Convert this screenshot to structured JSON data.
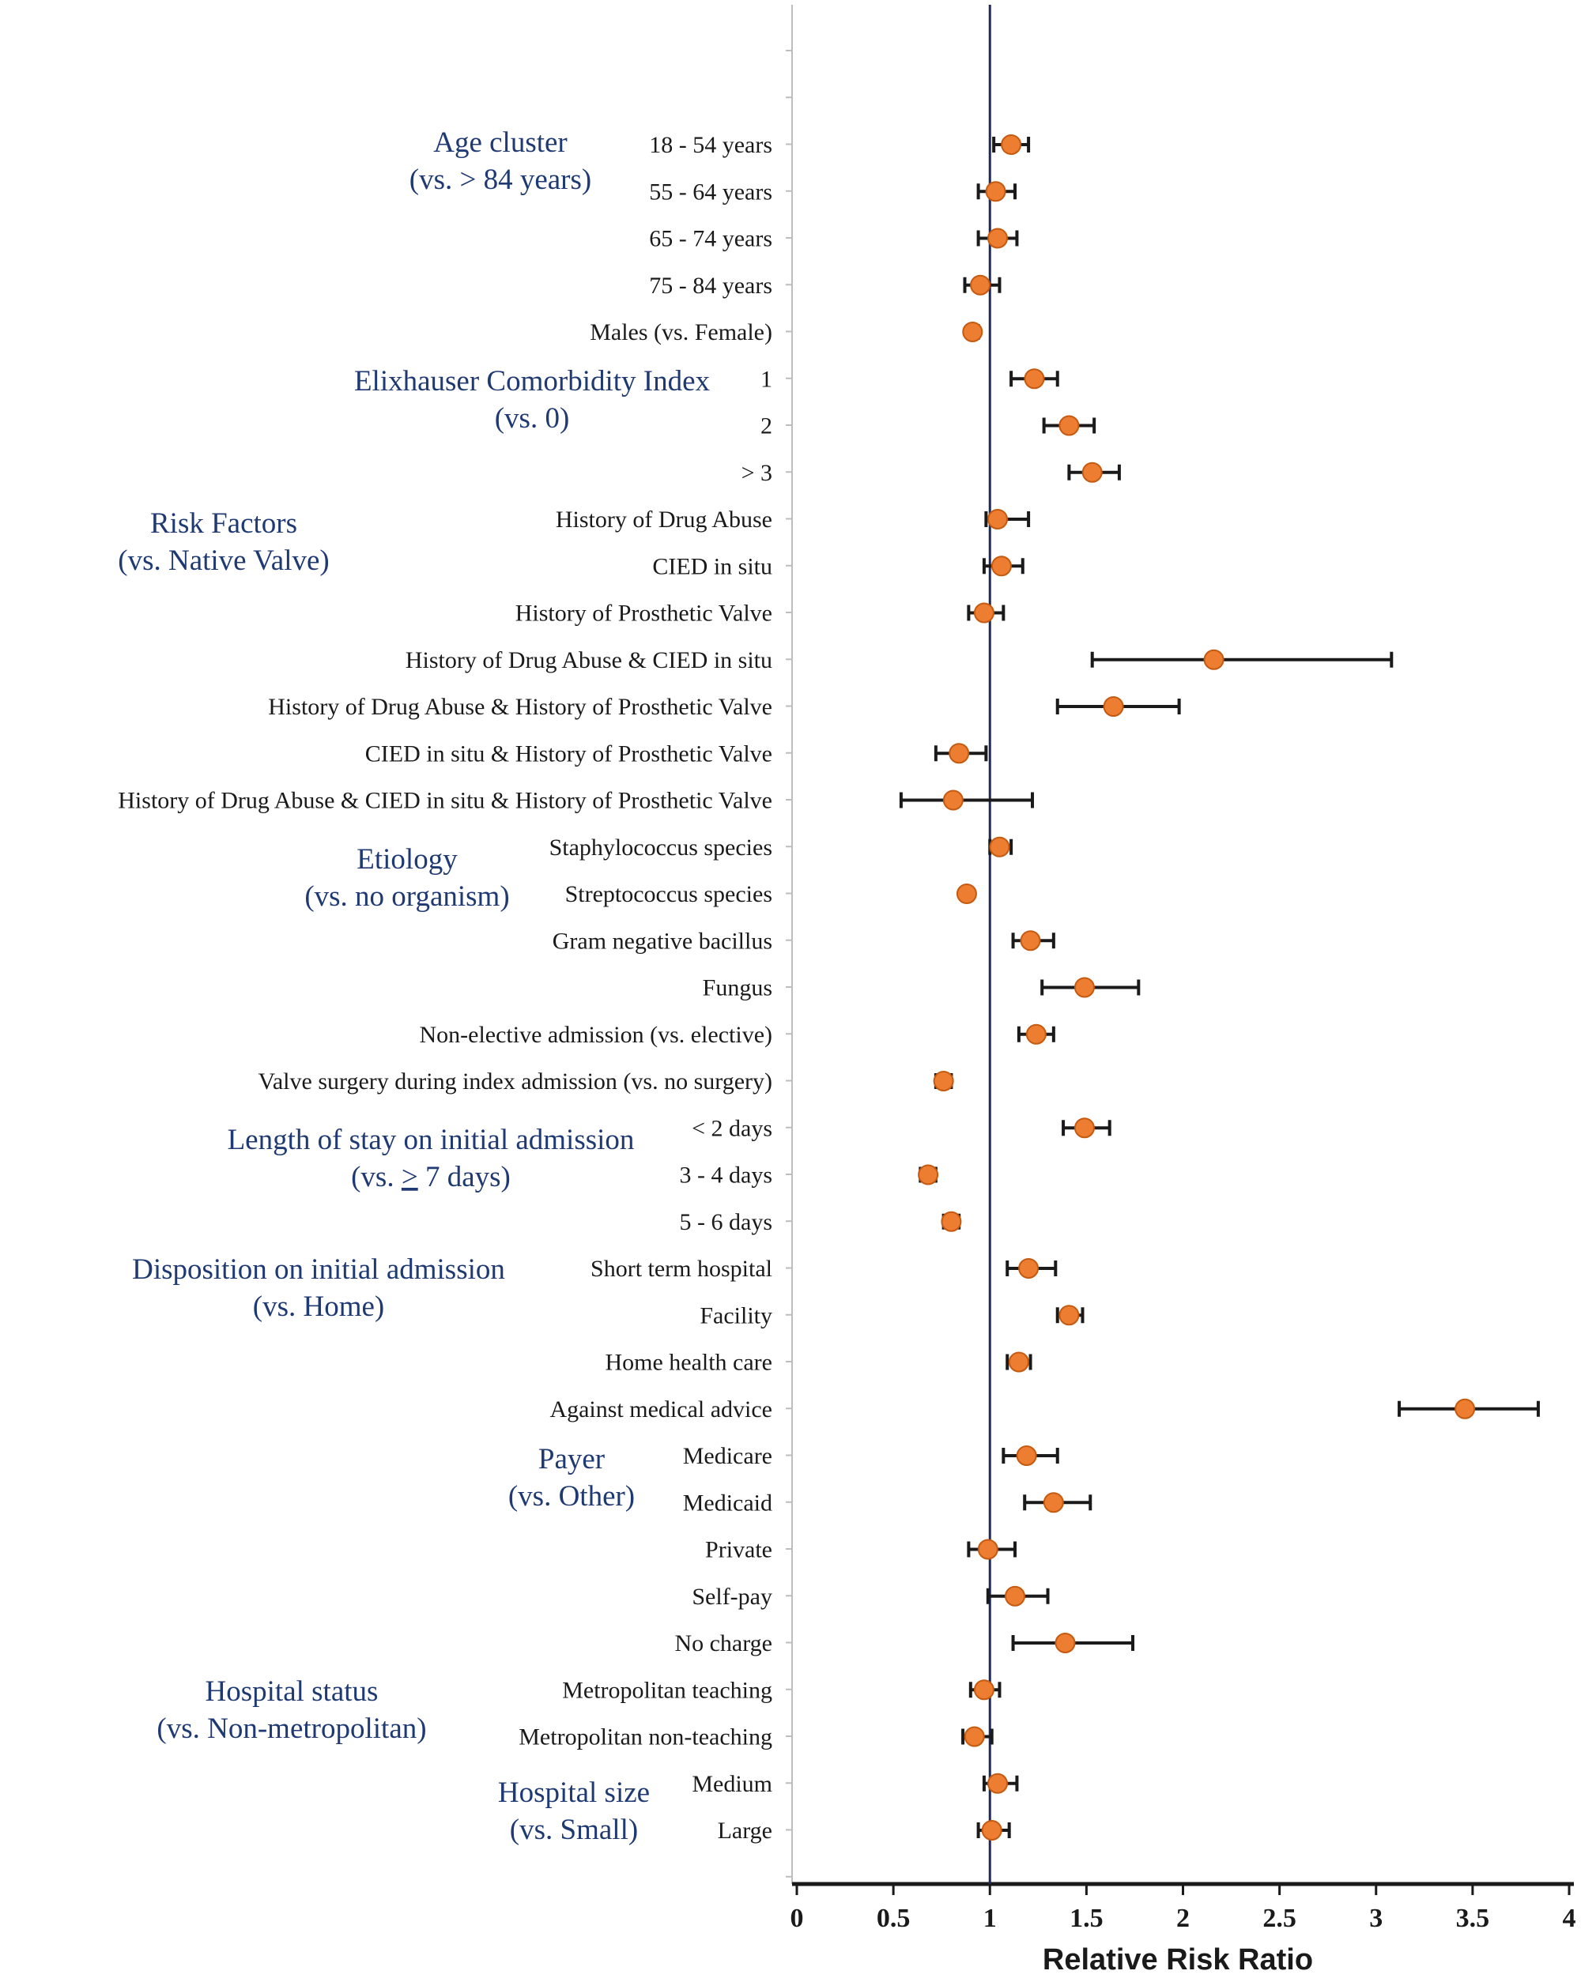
{
  "chart_data": {
    "type": "scatter",
    "subtype": "forest-plot",
    "xlabel": "Relative Risk Ratio",
    "xlim": [
      0,
      4
    ],
    "xticks": [
      "0",
      "0.5",
      "1",
      "1.5",
      "2",
      "2.5",
      "3",
      "3.5",
      "4"
    ],
    "reference_line": 1,
    "colors": {
      "point": "#ed7d31",
      "point_edge": "#c55a11",
      "reference": "#1f2a5c",
      "group_text": "#1f3a73"
    },
    "rows": [
      {
        "label": "18 - 54 years",
        "rr": 1.11,
        "lo": 1.02,
        "hi": 1.2
      },
      {
        "label": "55 - 64 years",
        "rr": 1.03,
        "lo": 0.94,
        "hi": 1.13
      },
      {
        "label": "65 - 74 years",
        "rr": 1.04,
        "lo": 0.94,
        "hi": 1.14
      },
      {
        "label": "75 - 84 years",
        "rr": 0.95,
        "lo": 0.87,
        "hi": 1.05
      },
      {
        "label": "Males (vs. Female)",
        "rr": 0.91,
        "lo": 0.89,
        "hi": 0.94
      },
      {
        "label": "1",
        "rr": 1.23,
        "lo": 1.11,
        "hi": 1.35
      },
      {
        "label": "2",
        "rr": 1.41,
        "lo": 1.28,
        "hi": 1.54
      },
      {
        "label": "> 3",
        "rr": 1.53,
        "lo": 1.41,
        "hi": 1.67
      },
      {
        "label": "History of Drug Abuse",
        "rr": 1.04,
        "lo": 0.98,
        "hi": 1.2
      },
      {
        "label": "CIED in situ",
        "rr": 1.06,
        "lo": 0.97,
        "hi": 1.17
      },
      {
        "label": "History of Prosthetic Valve",
        "rr": 0.97,
        "lo": 0.89,
        "hi": 1.07
      },
      {
        "label": "History of Drug Abuse & CIED in situ",
        "rr": 2.16,
        "lo": 1.53,
        "hi": 3.08
      },
      {
        "label": "History of Drug Abuse & History of Prosthetic Valve",
        "rr": 1.64,
        "lo": 1.35,
        "hi": 1.98
      },
      {
        "label": "CIED in situ & History of Prosthetic Valve",
        "rr": 0.84,
        "lo": 0.72,
        "hi": 0.98
      },
      {
        "label": "History of Drug Abuse & CIED in situ & History of Prosthetic Valve",
        "rr": 0.81,
        "lo": 0.54,
        "hi": 1.22
      },
      {
        "label": "Staphylococcus species",
        "rr": 1.05,
        "lo": 1.0,
        "hi": 1.11
      },
      {
        "label": "Streptococcus species",
        "rr": 0.88,
        "lo": 0.86,
        "hi": 0.9
      },
      {
        "label": "Gram negative bacillus",
        "rr": 1.21,
        "lo": 1.12,
        "hi": 1.33
      },
      {
        "label": "Fungus",
        "rr": 1.49,
        "lo": 1.27,
        "hi": 1.77
      },
      {
        "label": "Non-elective admission  (vs. elective)",
        "rr": 1.24,
        "lo": 1.15,
        "hi": 1.33
      },
      {
        "label": "Valve surgery during index admission (vs. no surgery)",
        "rr": 0.76,
        "lo": 0.72,
        "hi": 0.8
      },
      {
        "label": "< 2 days",
        "rr": 1.49,
        "lo": 1.38,
        "hi": 1.62
      },
      {
        "label": "3 - 4 days",
        "rr": 0.68,
        "lo": 0.64,
        "hi": 0.72
      },
      {
        "label": "5 - 6 days",
        "rr": 0.8,
        "lo": 0.76,
        "hi": 0.84
      },
      {
        "label": "Short term hospital",
        "rr": 1.2,
        "lo": 1.09,
        "hi": 1.34
      },
      {
        "label": "Facility",
        "rr": 1.41,
        "lo": 1.35,
        "hi": 1.48
      },
      {
        "label": "Home health care",
        "rr": 1.15,
        "lo": 1.09,
        "hi": 1.21
      },
      {
        "label": "Against medical advice",
        "rr": 3.46,
        "lo": 3.12,
        "hi": 3.84
      },
      {
        "label": "Medicare",
        "rr": 1.19,
        "lo": 1.07,
        "hi": 1.35
      },
      {
        "label": "Medicaid",
        "rr": 1.33,
        "lo": 1.18,
        "hi": 1.52
      },
      {
        "label": "Private",
        "rr": 0.99,
        "lo": 0.89,
        "hi": 1.13
      },
      {
        "label": "Self-pay",
        "rr": 1.13,
        "lo": 0.99,
        "hi": 1.3
      },
      {
        "label": "No charge",
        "rr": 1.39,
        "lo": 1.12,
        "hi": 1.74
      },
      {
        "label": "Metropolitan teaching",
        "rr": 0.97,
        "lo": 0.9,
        "hi": 1.05
      },
      {
        "label": "Metropolitan non-teaching",
        "rr": 0.92,
        "lo": 0.86,
        "hi": 1.01
      },
      {
        "label": "Medium",
        "rr": 1.04,
        "lo": 0.97,
        "hi": 1.14
      },
      {
        "label": "Large",
        "rr": 1.01,
        "lo": 0.94,
        "hi": 1.1
      }
    ],
    "groups": [
      {
        "lines": [
          "Age cluster",
          "(vs. > 84 years)"
        ]
      },
      {
        "lines": [
          "Elixhauser Comorbidity Index",
          "(vs. 0)"
        ]
      },
      {
        "lines": [
          "Risk Factors",
          "(vs. Native Valve)"
        ]
      },
      {
        "lines": [
          "Etiology",
          "(vs. no organism)"
        ]
      },
      {
        "lines": [
          "Length of stay on initial admission",
          "(vs. > 7 days)"
        ]
      },
      {
        "lines": [
          "Disposition on initial admission",
          "(vs. Home)"
        ]
      },
      {
        "lines": [
          "Payer",
          "(vs. Other)"
        ]
      },
      {
        "lines": [
          "Hospital status",
          "(vs. Non-metropolitan)"
        ]
      },
      {
        "lines": [
          "Hospital size",
          "(vs. Small)"
        ]
      }
    ]
  }
}
